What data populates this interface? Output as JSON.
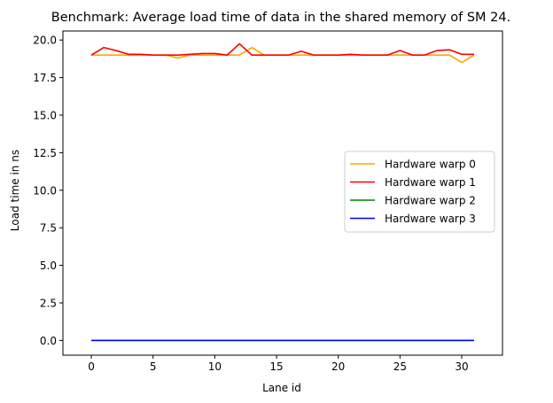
{
  "chart_data": {
    "type": "line",
    "title": "Benchmark: Average load time of data in the shared memory of SM 24.",
    "xlabel": "Lane id",
    "ylabel": "Load time in ns",
    "xlim": [
      -2.3,
      33.3
    ],
    "ylim": [
      -0.98,
      20.6
    ],
    "xticks": [
      0,
      5,
      10,
      15,
      20,
      25,
      30
    ],
    "xtick_labels": [
      "0",
      "5",
      "10",
      "15",
      "20",
      "25",
      "30"
    ],
    "yticks": [
      0.0,
      2.5,
      5.0,
      7.5,
      10.0,
      12.5,
      15.0,
      17.5,
      20.0
    ],
    "ytick_labels": [
      "0.0",
      "2.5",
      "5.0",
      "7.5",
      "10.0",
      "12.5",
      "15.0",
      "17.5",
      "20.0"
    ],
    "grid": false,
    "legend_position": "center-right",
    "x": [
      0,
      1,
      2,
      3,
      4,
      5,
      6,
      7,
      8,
      9,
      10,
      11,
      12,
      13,
      14,
      15,
      16,
      17,
      18,
      19,
      20,
      21,
      22,
      23,
      24,
      25,
      26,
      27,
      28,
      29,
      30,
      31
    ],
    "series": [
      {
        "name": "Hardware warp 0",
        "color": "#ffa500",
        "values": [
          19.0,
          19.0,
          19.0,
          19.0,
          19.0,
          19.0,
          19.0,
          18.8,
          19.0,
          19.0,
          19.0,
          19.0,
          19.0,
          19.5,
          19.0,
          19.0,
          19.0,
          19.0,
          19.0,
          19.0,
          19.0,
          19.0,
          19.0,
          19.0,
          19.0,
          19.0,
          19.0,
          19.0,
          19.0,
          19.0,
          18.5,
          19.0
        ]
      },
      {
        "name": "Hardware warp 1",
        "color": "#ff0000",
        "values": [
          19.0,
          19.5,
          19.3,
          19.05,
          19.05,
          19.0,
          19.0,
          19.0,
          19.05,
          19.1,
          19.1,
          19.0,
          19.75,
          19.0,
          19.0,
          19.0,
          19.0,
          19.25,
          19.0,
          19.0,
          19.0,
          19.05,
          19.0,
          19.0,
          19.0,
          19.3,
          19.0,
          19.0,
          19.3,
          19.35,
          19.05,
          19.05
        ]
      },
      {
        "name": "Hardware warp 2",
        "color": "#008000",
        "values": [
          0,
          0,
          0,
          0,
          0,
          0,
          0,
          0,
          0,
          0,
          0,
          0,
          0,
          0,
          0,
          0,
          0,
          0,
          0,
          0,
          0,
          0,
          0,
          0,
          0,
          0,
          0,
          0,
          0,
          0,
          0,
          0
        ]
      },
      {
        "name": "Hardware warp 3",
        "color": "#0000ff",
        "values": [
          0,
          0,
          0,
          0,
          0,
          0,
          0,
          0,
          0,
          0,
          0,
          0,
          0,
          0,
          0,
          0,
          0,
          0,
          0,
          0,
          0,
          0,
          0,
          0,
          0,
          0,
          0,
          0,
          0,
          0,
          0,
          0
        ]
      }
    ]
  }
}
